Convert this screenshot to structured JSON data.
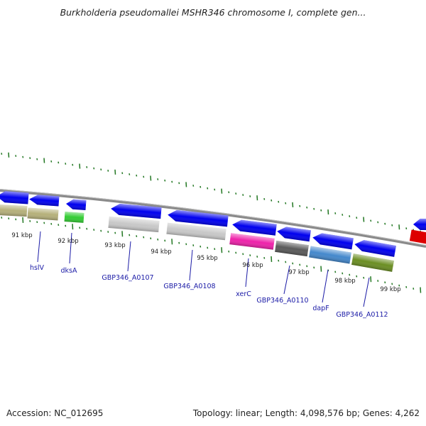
{
  "title": "Burkholderia pseudomallei MSHR346 chromosome I, complete gen...",
  "footer": {
    "accession": "Accession: NC_012695",
    "summary": "Topology: linear; Length: 4,098,576 bp; Genes: 4,262"
  },
  "scale_labels": [
    "91 kbp",
    "92 kbp",
    "93 kbp",
    "94 kbp",
    "95 kbp",
    "96 kbp",
    "97 kbp",
    "98 kbp",
    "99 kbp"
  ],
  "genes": [
    {
      "name": "hslV",
      "color": "#b5b07a"
    },
    {
      "name": "dksA",
      "color": "#33cc33"
    },
    {
      "name": "GBP346_A0107",
      "color": "#c8c8c8"
    },
    {
      "name": "GBP346_A0108",
      "color": "#c8c8c8"
    },
    {
      "name": "xerC",
      "color": "#ee22aa"
    },
    {
      "name": "GBP346_A0110",
      "color": "#5a5a5a"
    },
    {
      "name": "dapF",
      "color": "#4488cc"
    },
    {
      "name": "GBP346_A0112",
      "color": "#6b8e23"
    }
  ],
  "colors": {
    "strand_arrow": "#0000ee",
    "unlabeled_gene": "#dd0000",
    "backbone": "#8a8a8a",
    "tick": "#227722",
    "label_line": "#1a1aa6"
  }
}
